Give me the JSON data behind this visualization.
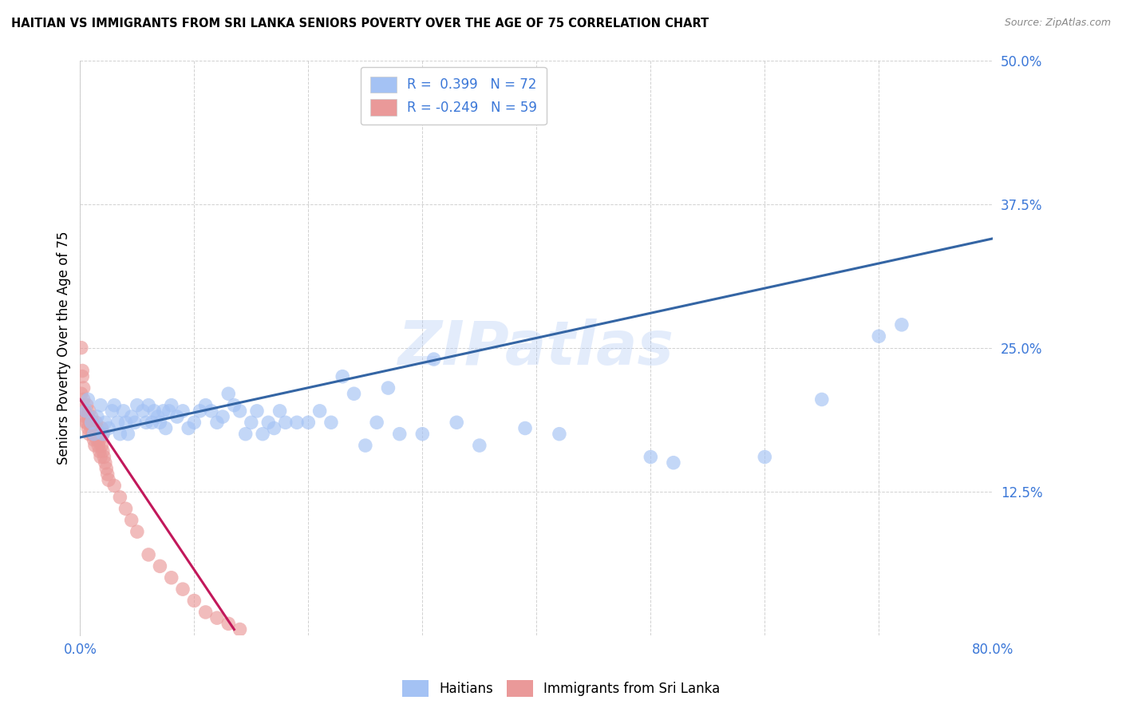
{
  "title": "HAITIAN VS IMMIGRANTS FROM SRI LANKA SENIORS POVERTY OVER THE AGE OF 75 CORRELATION CHART",
  "source": "Source: ZipAtlas.com",
  "ylabel": "Seniors Poverty Over the Age of 75",
  "legend_r1": "R =  0.399   N = 72",
  "legend_r2": "R = -0.249   N = 59",
  "blue_color": "#a4c2f4",
  "pink_color": "#ea9999",
  "trend_blue": "#3465a4",
  "trend_pink": "#c2185b",
  "watermark": "ZIPatlas",
  "xlim": [
    0.0,
    0.8
  ],
  "ylim": [
    0.0,
    0.5
  ],
  "blue_trend_x": [
    0.0,
    0.8
  ],
  "blue_trend_y": [
    0.172,
    0.345
  ],
  "pink_trend_x": [
    0.0,
    0.135
  ],
  "pink_trend_y": [
    0.205,
    0.005
  ],
  "blue_scatter_x": [
    0.005,
    0.007,
    0.01,
    0.012,
    0.015,
    0.018,
    0.02,
    0.022,
    0.025,
    0.028,
    0.03,
    0.033,
    0.035,
    0.038,
    0.04,
    0.042,
    0.045,
    0.048,
    0.05,
    0.055,
    0.058,
    0.06,
    0.063,
    0.065,
    0.068,
    0.07,
    0.073,
    0.075,
    0.078,
    0.08,
    0.085,
    0.09,
    0.095,
    0.1,
    0.105,
    0.11,
    0.115,
    0.12,
    0.125,
    0.13,
    0.135,
    0.14,
    0.145,
    0.15,
    0.155,
    0.16,
    0.165,
    0.17,
    0.175,
    0.18,
    0.19,
    0.2,
    0.21,
    0.22,
    0.23,
    0.24,
    0.25,
    0.26,
    0.27,
    0.28,
    0.3,
    0.31,
    0.33,
    0.35,
    0.39,
    0.42,
    0.5,
    0.52,
    0.6,
    0.65,
    0.7,
    0.72
  ],
  "blue_scatter_y": [
    0.195,
    0.205,
    0.185,
    0.175,
    0.19,
    0.2,
    0.175,
    0.185,
    0.18,
    0.195,
    0.2,
    0.185,
    0.175,
    0.195,
    0.185,
    0.175,
    0.19,
    0.185,
    0.2,
    0.195,
    0.185,
    0.2,
    0.185,
    0.195,
    0.19,
    0.185,
    0.195,
    0.18,
    0.195,
    0.2,
    0.19,
    0.195,
    0.18,
    0.185,
    0.195,
    0.2,
    0.195,
    0.185,
    0.19,
    0.21,
    0.2,
    0.195,
    0.175,
    0.185,
    0.195,
    0.175,
    0.185,
    0.18,
    0.195,
    0.185,
    0.185,
    0.185,
    0.195,
    0.185,
    0.225,
    0.21,
    0.165,
    0.185,
    0.215,
    0.175,
    0.175,
    0.24,
    0.185,
    0.165,
    0.18,
    0.175,
    0.155,
    0.15,
    0.155,
    0.205,
    0.26,
    0.27
  ],
  "pink_scatter_x": [
    0.001,
    0.002,
    0.003,
    0.004,
    0.005,
    0.006,
    0.007,
    0.008,
    0.009,
    0.01,
    0.011,
    0.012,
    0.013,
    0.014,
    0.015,
    0.016,
    0.017,
    0.018,
    0.019,
    0.02,
    0.001,
    0.002,
    0.003,
    0.004,
    0.005,
    0.006,
    0.007,
    0.008,
    0.009,
    0.01,
    0.011,
    0.012,
    0.013,
    0.014,
    0.015,
    0.016,
    0.017,
    0.018,
    0.019,
    0.02,
    0.021,
    0.022,
    0.023,
    0.024,
    0.025,
    0.03,
    0.035,
    0.04,
    0.045,
    0.05,
    0.06,
    0.07,
    0.08,
    0.09,
    0.1,
    0.11,
    0.12,
    0.13,
    0.14
  ],
  "pink_scatter_y": [
    0.21,
    0.225,
    0.205,
    0.195,
    0.185,
    0.2,
    0.19,
    0.195,
    0.185,
    0.19,
    0.185,
    0.18,
    0.175,
    0.185,
    0.18,
    0.175,
    0.17,
    0.175,
    0.18,
    0.175,
    0.25,
    0.23,
    0.215,
    0.195,
    0.19,
    0.185,
    0.18,
    0.175,
    0.185,
    0.18,
    0.175,
    0.17,
    0.165,
    0.175,
    0.17,
    0.165,
    0.16,
    0.155,
    0.165,
    0.16,
    0.155,
    0.15,
    0.145,
    0.14,
    0.135,
    0.13,
    0.12,
    0.11,
    0.1,
    0.09,
    0.07,
    0.06,
    0.05,
    0.04,
    0.03,
    0.02,
    0.015,
    0.01,
    0.005
  ]
}
